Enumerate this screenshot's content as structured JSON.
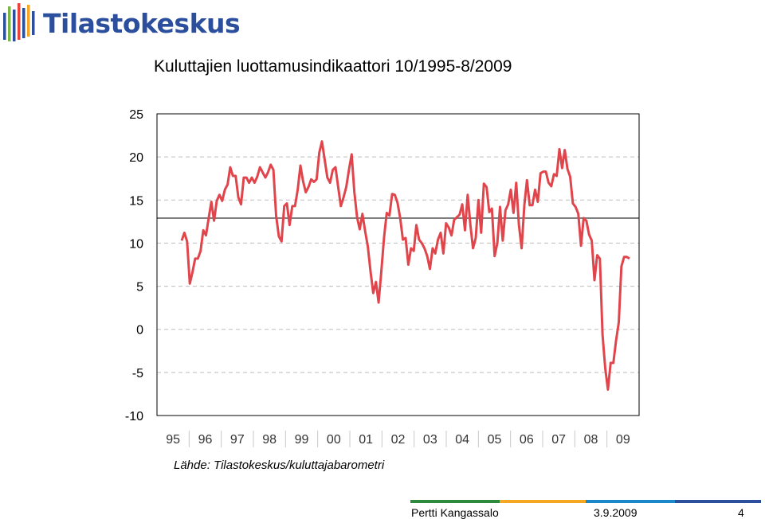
{
  "header": {
    "logo_text": "Tilastokeskus",
    "logo_colors": [
      "#2b4f9c",
      "#7ab648",
      "#e8423f",
      "#f5a623"
    ]
  },
  "slide": {
    "title": "Kuluttajien luottamusindikaattori 10/1995-8/2009",
    "source": "Lähde: Tilastokeskus/kuluttajabarometri"
  },
  "chart_data": {
    "type": "line",
    "title": "Kuluttajien luottamusindikaattori 10/1995-8/2009",
    "xlabel": "",
    "ylabel": "",
    "ylim": [
      -10,
      25
    ],
    "yticks": [
      25,
      20,
      15,
      10,
      5,
      0,
      -5,
      -10
    ],
    "year_labels": [
      "95",
      "96",
      "97",
      "98",
      "99",
      "00",
      "01",
      "02",
      "03",
      "04",
      "05",
      "06",
      "07",
      "08",
      "09"
    ],
    "reference_line_value": 12.9,
    "gridlines": "dashed",
    "series": [
      {
        "color": "#e0454b",
        "start": "1995-10",
        "end": "2009-08",
        "values": [
          10.3,
          11.2,
          10.2,
          5.3,
          6.6,
          8.2,
          8.2,
          9.1,
          11.5,
          10.9,
          12.9,
          14.8,
          12.6,
          14.9,
          15.6,
          14.9,
          16.2,
          16.8,
          18.8,
          17.8,
          17.8,
          15.3,
          14.5,
          17.6,
          17.6,
          17.0,
          17.6,
          17.0,
          17.7,
          18.8,
          18.2,
          17.6,
          18.2,
          19.1,
          18.5,
          13.2,
          10.8,
          10.2,
          14.3,
          14.6,
          12.1,
          14.3,
          14.3,
          16.2,
          19.0,
          17.2,
          15.9,
          16.5,
          17.4,
          17.1,
          17.4,
          20.5,
          21.8,
          19.7,
          17.6,
          17.0,
          18.5,
          18.8,
          16.5,
          14.3,
          15.3,
          16.5,
          18.5,
          20.3,
          15.9,
          13.0,
          11.6,
          13.4,
          11.4,
          9.6,
          6.7,
          4.2,
          5.5,
          3.1,
          6.7,
          10.6,
          13.5,
          13.2,
          15.7,
          15.6,
          14.7,
          12.9,
          10.4,
          10.6,
          7.5,
          9.4,
          9.1,
          12.1,
          10.4,
          10.0,
          9.4,
          8.5,
          7.0,
          9.4,
          8.8,
          10.4,
          11.2,
          8.8,
          12.3,
          11.8,
          10.9,
          12.7,
          13.0,
          13.3,
          14.5,
          11.5,
          15.6,
          12.1,
          9.4,
          10.6,
          15.0,
          11.2,
          16.9,
          16.5,
          13.6,
          14.0,
          8.5,
          10.0,
          14.2,
          10.3,
          13.8,
          14.5,
          16.2,
          13.5,
          17.0,
          12.1,
          9.4,
          14.4,
          17.3,
          14.4,
          14.4,
          16.2,
          14.8,
          18.1,
          18.3,
          18.3,
          17.0,
          16.6,
          18.0,
          17.8,
          20.9,
          18.7,
          20.8,
          18.6,
          17.7,
          14.6,
          14.2,
          13.4,
          9.7,
          12.9,
          12.6,
          11.0,
          10.3,
          5.7,
          8.6,
          8.2,
          -0.6,
          -4.5,
          -7.0,
          -3.9,
          -3.9,
          -1.3,
          0.8,
          7.3,
          8.4,
          8.4,
          8.2
        ]
      }
    ]
  },
  "footer": {
    "author": "Pertti Kangassalo",
    "date": "3.9.2009",
    "page": "4",
    "colors": [
      "#2e8b3d",
      "#f5a623",
      "#1a88c9",
      "#2b4f9c"
    ]
  }
}
